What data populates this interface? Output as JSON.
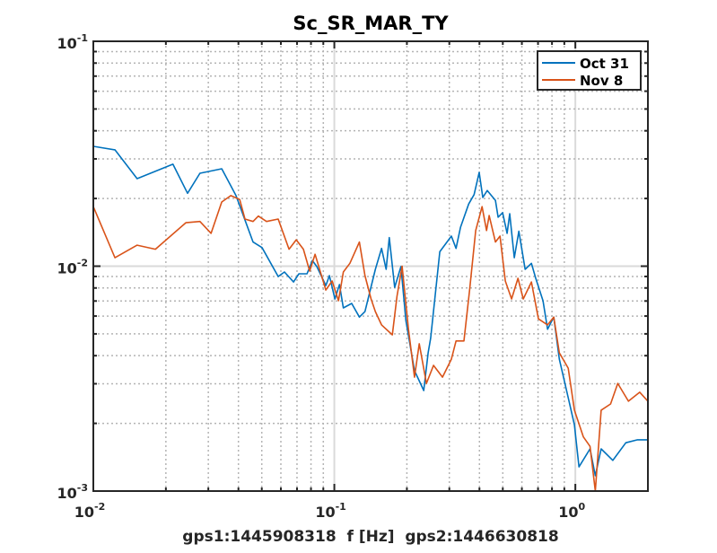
{
  "chart_data": {
    "type": "line",
    "title": "Sc_SR_MAR_TY",
    "xlabel": "gps1:1445908318  f [Hz]  gps2:1446630818",
    "ylabel": "",
    "xscale": "log",
    "yscale": "log",
    "xlim": [
      0.01,
      2.0
    ],
    "ylim": [
      0.001,
      0.1
    ],
    "grid": true,
    "legend_position": "top-right",
    "x_tick_labels": [
      {
        "base": "10",
        "exp": "-2"
      },
      {
        "base": "10",
        "exp": "-1"
      },
      {
        "base": "10",
        "exp": "0"
      }
    ],
    "y_tick_labels": [
      {
        "base": "10",
        "exp": "-1"
      },
      {
        "base": "10",
        "exp": "-2"
      },
      {
        "base": "10",
        "exp": "-3"
      }
    ],
    "series": [
      {
        "name": "Oct 31",
        "color": "#0072BD",
        "points": [
          [
            0.01,
            0.0341
          ],
          [
            0.0123,
            0.0329
          ],
          [
            0.0152,
            0.0245
          ],
          [
            0.0214,
            0.0284
          ],
          [
            0.0246,
            0.0211
          ],
          [
            0.0277,
            0.0259
          ],
          [
            0.0341,
            0.0271
          ],
          [
            0.0391,
            0.0206
          ],
          [
            0.046,
            0.0128
          ],
          [
            0.0501,
            0.0121
          ],
          [
            0.0585,
            0.009
          ],
          [
            0.0621,
            0.00942
          ],
          [
            0.0677,
            0.00851
          ],
          [
            0.0713,
            0.00925
          ],
          [
            0.077,
            0.00925
          ],
          [
            0.0811,
            0.0106
          ],
          [
            0.0846,
            0.00995
          ],
          [
            0.0922,
            0.0082
          ],
          [
            0.0954,
            0.00908
          ],
          [
            0.1005,
            0.00715
          ],
          [
            0.105,
            0.00828
          ],
          [
            0.109,
            0.00652
          ],
          [
            0.118,
            0.00683
          ],
          [
            0.127,
            0.00594
          ],
          [
            0.134,
            0.00628
          ],
          [
            0.148,
            0.00968
          ],
          [
            0.157,
            0.012
          ],
          [
            0.164,
            0.00968
          ],
          [
            0.169,
            0.0134
          ],
          [
            0.178,
            0.00805
          ],
          [
            0.189,
            0.00995
          ],
          [
            0.198,
            0.00573
          ],
          [
            0.215,
            0.00343
          ],
          [
            0.235,
            0.0028
          ],
          [
            0.245,
            0.00412
          ],
          [
            0.251,
            0.00478
          ],
          [
            0.274,
            0.0116
          ],
          [
            0.306,
            0.0136
          ],
          [
            0.32,
            0.012
          ],
          [
            0.334,
            0.0149
          ],
          [
            0.361,
            0.0189
          ],
          [
            0.38,
            0.0208
          ],
          [
            0.399,
            0.0261
          ],
          [
            0.413,
            0.0202
          ],
          [
            0.431,
            0.0217
          ],
          [
            0.466,
            0.0196
          ],
          [
            0.478,
            0.0165
          ],
          [
            0.499,
            0.0173
          ],
          [
            0.521,
            0.014
          ],
          [
            0.534,
            0.0171
          ],
          [
            0.558,
            0.0109
          ],
          [
            0.583,
            0.0143
          ],
          [
            0.619,
            0.00968
          ],
          [
            0.657,
            0.0103
          ],
          [
            0.685,
            0.00883
          ],
          [
            0.734,
            0.00702
          ],
          [
            0.767,
            0.00524
          ],
          [
            0.814,
            0.00594
          ],
          [
            0.858,
            0.00386
          ],
          [
            0.934,
            0.0026
          ],
          [
            0.991,
            0.00197
          ],
          [
            1.035,
            0.00128
          ],
          [
            1.15,
            0.00154
          ],
          [
            1.21,
            0.00117
          ],
          [
            1.28,
            0.00154
          ],
          [
            1.43,
            0.00137
          ],
          [
            1.62,
            0.00164
          ],
          [
            1.81,
            0.00169
          ],
          [
            2.0,
            0.00169
          ]
        ]
      },
      {
        "name": "Nov 8",
        "color": "#D95319",
        "points": [
          [
            0.01,
            0.0184
          ],
          [
            0.0123,
            0.0109
          ],
          [
            0.0152,
            0.0124
          ],
          [
            0.0181,
            0.0119
          ],
          [
            0.0242,
            0.0156
          ],
          [
            0.0277,
            0.0158
          ],
          [
            0.0308,
            0.014
          ],
          [
            0.0341,
            0.0193
          ],
          [
            0.0372,
            0.0206
          ],
          [
            0.0405,
            0.0198
          ],
          [
            0.0426,
            0.0162
          ],
          [
            0.046,
            0.0158
          ],
          [
            0.0484,
            0.0167
          ],
          [
            0.0523,
            0.0158
          ],
          [
            0.0585,
            0.0162
          ],
          [
            0.0649,
            0.0119
          ],
          [
            0.0695,
            0.0131
          ],
          [
            0.0744,
            0.0119
          ],
          [
            0.079,
            0.00951
          ],
          [
            0.0832,
            0.0113
          ],
          [
            0.0922,
            0.00783
          ],
          [
            0.0979,
            0.00859
          ],
          [
            0.104,
            0.00702
          ],
          [
            0.109,
            0.00942
          ],
          [
            0.116,
            0.0103
          ],
          [
            0.127,
            0.0128
          ],
          [
            0.134,
            0.00908
          ],
          [
            0.142,
            0.00715
          ],
          [
            0.148,
            0.00628
          ],
          [
            0.157,
            0.00548
          ],
          [
            0.174,
            0.00495
          ],
          [
            0.182,
            0.00735
          ],
          [
            0.191,
            0.01
          ],
          [
            0.203,
            0.00524
          ],
          [
            0.215,
            0.00321
          ],
          [
            0.225,
            0.00452
          ],
          [
            0.241,
            0.00301
          ],
          [
            0.258,
            0.00362
          ],
          [
            0.281,
            0.00321
          ],
          [
            0.306,
            0.00386
          ],
          [
            0.32,
            0.00465
          ],
          [
            0.345,
            0.00465
          ],
          [
            0.364,
            0.00783
          ],
          [
            0.386,
            0.0144
          ],
          [
            0.41,
            0.0184
          ],
          [
            0.428,
            0.0144
          ],
          [
            0.439,
            0.0168
          ],
          [
            0.466,
            0.0128
          ],
          [
            0.487,
            0.0136
          ],
          [
            0.512,
            0.00859
          ],
          [
            0.544,
            0.00715
          ],
          [
            0.578,
            0.00883
          ],
          [
            0.608,
            0.00715
          ],
          [
            0.657,
            0.00851
          ],
          [
            0.703,
            0.00583
          ],
          [
            0.767,
            0.00548
          ],
          [
            0.814,
            0.00594
          ],
          [
            0.858,
            0.00412
          ],
          [
            0.934,
            0.00352
          ],
          [
            0.991,
            0.00229
          ],
          [
            1.08,
            0.00174
          ],
          [
            1.15,
            0.00158
          ],
          [
            1.21,
            0.001
          ],
          [
            1.28,
            0.00229
          ],
          [
            1.4,
            0.00244
          ],
          [
            1.5,
            0.00301
          ],
          [
            1.66,
            0.00251
          ],
          [
            1.85,
            0.00275
          ],
          [
            2.0,
            0.00251
          ]
        ]
      }
    ]
  }
}
